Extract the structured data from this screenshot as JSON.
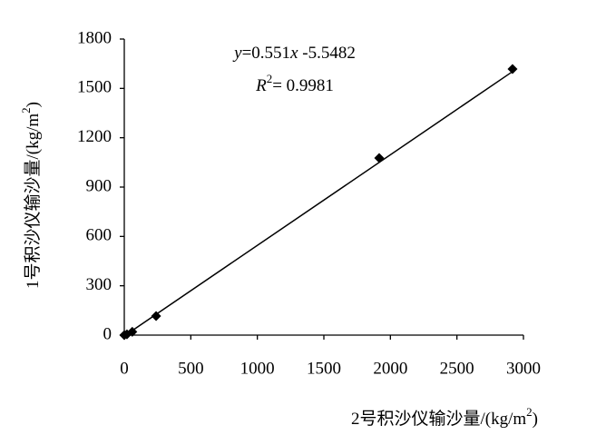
{
  "chart_data": {
    "type": "scatter",
    "x_label": [
      "2号积沙仪输沙量/(kg/m",
      "2",
      ")"
    ],
    "y_label": [
      "1号积沙仪输沙量/(kg/m",
      "2",
      ")"
    ],
    "equation": [
      "y",
      "=0.551",
      "x",
      " -5.5482"
    ],
    "r_squared": [
      "R",
      "2",
      "= 0.9981"
    ],
    "series": [
      {
        "color": "#000000",
        "x": [
          0,
          20,
          60,
          239,
          1916,
          2918
        ],
        "values": [
          0,
          5,
          20,
          116,
          1077,
          1618
        ]
      }
    ],
    "trendline": {
      "slope": 0.551,
      "intercept": -5.5482,
      "color": "#000000"
    },
    "xlim": [
      0,
      3000
    ],
    "xticks": [
      0,
      500,
      1000,
      1500,
      2000,
      2500,
      3000
    ],
    "ylim": [
      0,
      1800
    ],
    "yticks": [
      0,
      300,
      600,
      900,
      1200,
      1500,
      1800
    ],
    "grid": false
  }
}
